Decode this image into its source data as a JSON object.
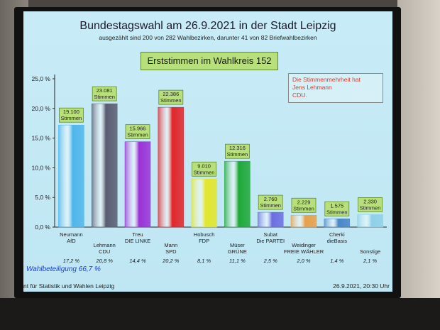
{
  "header": {
    "title": "Bundestagswahl am 26.9.2021 in der Stadt Leipzig",
    "subtitle": "ausgezählt sind 200 von 282 Wahlbezirken, darunter 41 von 82 Briefwahlbezirken",
    "constituency": "Erststimmen im Wahlkreis 152"
  },
  "note": {
    "line1": "Die Stimmenmehrheit hat",
    "line2": "Jens Lehmann",
    "line3": "CDU."
  },
  "turnout": "Wahlbeteiligung 66,7 %",
  "footer": {
    "left": "nt für Statistik und Wahlen Leipzig",
    "right": "26.9.2021, 20:30 Uhr"
  },
  "chart_data": {
    "type": "bar",
    "ylim": [
      0,
      25
    ],
    "yticks": [
      "0,0 %",
      "5,0 %",
      "10,0 %",
      "15,0 %",
      "20,0 %",
      "25,0 %"
    ],
    "grid": false,
    "bars": [
      {
        "name": "Neumann",
        "party": "AfD",
        "votes": "19.100",
        "unit": "Stimmen",
        "pct_label": "17,2 %",
        "value": 17.2,
        "color": "#4fb6ea"
      },
      {
        "name": "Lehmann",
        "party": "CDU",
        "votes": "23.081",
        "unit": "Stimmen",
        "pct_label": "20,8 %",
        "value": 20.8,
        "color": "#5a5d72"
      },
      {
        "name": "Treu",
        "party": "DIE LINKE",
        "votes": "15.966",
        "unit": "Stimmen",
        "pct_label": "14,4 %",
        "value": 14.4,
        "color": "#9b32d6"
      },
      {
        "name": "Mann",
        "party": "SPD",
        "votes": "22.386",
        "unit": "Stimmen",
        "pct_label": "20,2 %",
        "value": 20.2,
        "color": "#e0262b"
      },
      {
        "name": "Hobusch",
        "party": "FDP",
        "votes": "9.010",
        "unit": "Stimmen",
        "pct_label": "8,1 %",
        "value": 8.1,
        "color": "#e3e62a"
      },
      {
        "name": "Müser",
        "party": "GRÜNE",
        "votes": "12.316",
        "unit": "Stimmen",
        "pct_label": "11,1 %",
        "value": 11.1,
        "color": "#1fa83a"
      },
      {
        "name": "Subat",
        "party": "Die PARTEI",
        "votes": "2.760",
        "unit": "Stimmen",
        "pct_label": "2,5 %",
        "value": 2.5,
        "color": "#6b6ee0"
      },
      {
        "name": "Weidinger",
        "party": "FREIE WÄHLER",
        "votes": "2.229",
        "unit": "Stimmen",
        "pct_label": "2,0 %",
        "value": 2.0,
        "color": "#e8a04a"
      },
      {
        "name": "Cherki",
        "party": "dieBasis",
        "votes": "1.575",
        "unit": "Stimmen",
        "pct_label": "1,4 %",
        "value": 1.4,
        "color": "#4a86c8"
      },
      {
        "name": "",
        "party": "Sonstige",
        "votes": "2.330",
        "unit": "Stimmen",
        "pct_label": "2,1 %",
        "value": 2.1,
        "color": "#8fd0e8"
      }
    ]
  }
}
